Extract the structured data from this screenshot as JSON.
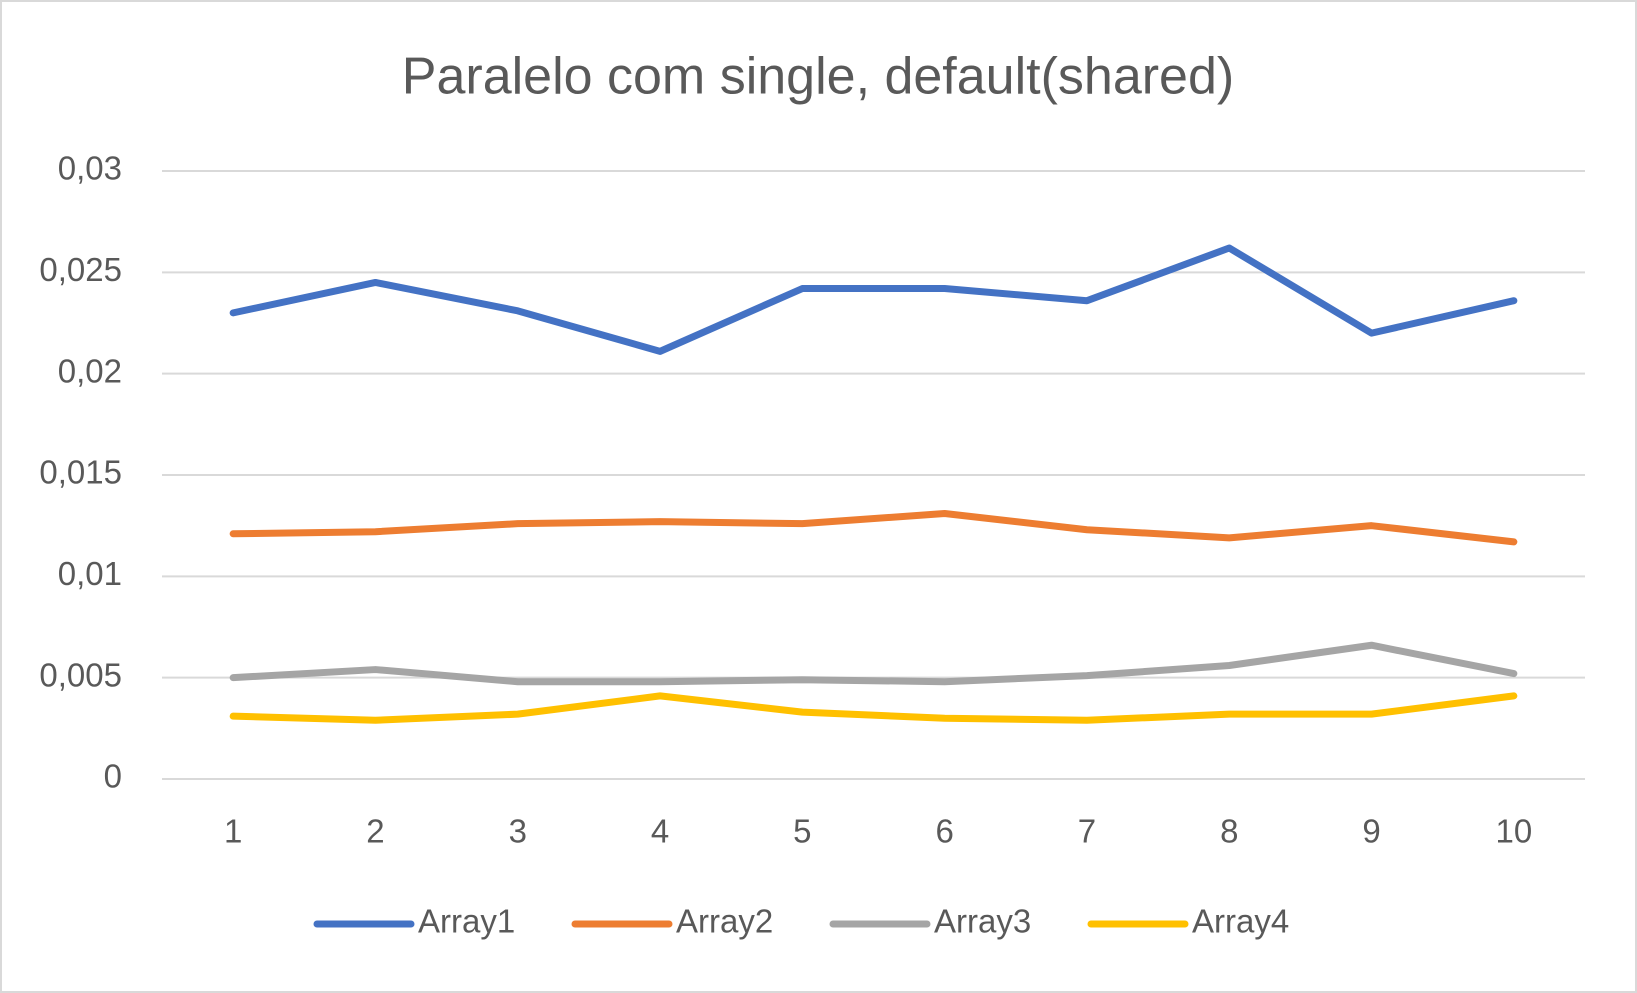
{
  "chart_data": {
    "type": "line",
    "title": "Paralelo com single, default(shared)",
    "categories": [
      1,
      2,
      3,
      4,
      5,
      6,
      7,
      8,
      9,
      10
    ],
    "series": [
      {
        "name": "Array1",
        "color": "#4472c4",
        "values": [
          0.023,
          0.0245,
          0.0231,
          0.0211,
          0.0242,
          0.0242,
          0.0236,
          0.0262,
          0.022,
          0.0236
        ]
      },
      {
        "name": "Array2",
        "color": "#ed7d31",
        "values": [
          0.0121,
          0.0122,
          0.0126,
          0.0127,
          0.0126,
          0.0131,
          0.0123,
          0.0119,
          0.0125,
          0.0117
        ]
      },
      {
        "name": "Array3",
        "color": "#a5a5a5",
        "values": [
          0.005,
          0.0054,
          0.0048,
          0.0048,
          0.0049,
          0.0048,
          0.0051,
          0.0056,
          0.0066,
          0.0052
        ]
      },
      {
        "name": "Array4",
        "color": "#ffc000",
        "values": [
          0.0031,
          0.0029,
          0.0032,
          0.0041,
          0.0033,
          0.003,
          0.0029,
          0.0032,
          0.0032,
          0.0041
        ]
      }
    ],
    "ylim": [
      0,
      0.03
    ],
    "yticks": [
      0,
      {
        "value": 0.005,
        "label": "0,005"
      },
      {
        "value": 0.01,
        "label": "0,01"
      },
      {
        "value": 0.015,
        "label": "0,015"
      },
      {
        "value": 0.02,
        "label": "0,02"
      },
      {
        "value": 0.025,
        "label": "0,025"
      },
      {
        "value": 0.03,
        "label": "0,03"
      }
    ],
    "grid": true,
    "legend": "bottom"
  }
}
